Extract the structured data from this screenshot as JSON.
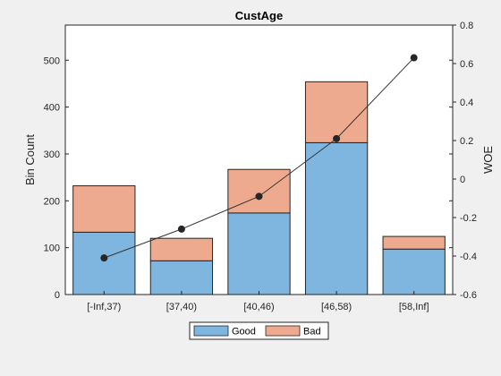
{
  "chart_data": {
    "type": "bar",
    "title": "CustAge",
    "categories": [
      "[-Inf,37)",
      "[37,40)",
      "[40,46)",
      "[46,58)",
      "[58,Inf]"
    ],
    "stacked": true,
    "series": [
      {
        "name": "Good",
        "values": [
          133,
          72,
          174,
          324,
          97
        ],
        "color": "#7eb6e0"
      },
      {
        "name": "Bad",
        "values": [
          99,
          48,
          93,
          130,
          27
        ],
        "color": "#eeaa8e"
      }
    ],
    "line_series": {
      "values": [
        -0.41,
        -0.26,
        -0.09,
        0.21,
        0.63
      ],
      "color": "#333333",
      "axis": "right"
    },
    "ylabel": "Bin Count",
    "ylim": [
      0,
      575
    ],
    "yticks": [
      0,
      100,
      200,
      300,
      400,
      500
    ],
    "y2label": "WOE",
    "y2lim": [
      -0.6,
      0.8
    ],
    "y2ticks": [
      "-0.6",
      "-0.4",
      "-0.2",
      "0",
      "0.2",
      "0.4",
      "0.6",
      "0.8"
    ],
    "grid": false,
    "legend_position": "bottom"
  }
}
